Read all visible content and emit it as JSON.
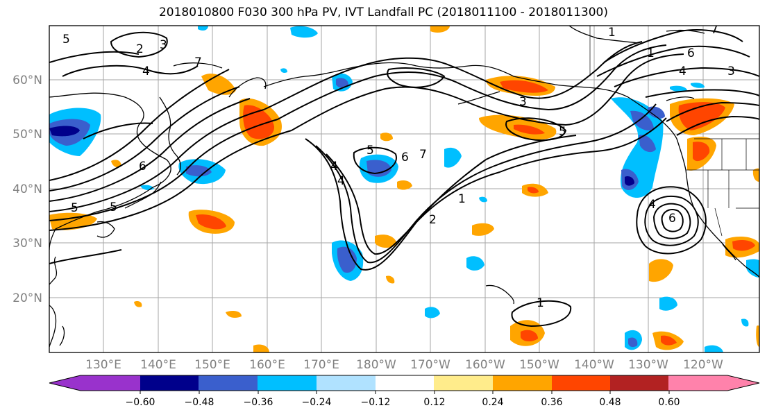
{
  "title": "2018010800 F030 300 hPa PV, IVT Landfall PC (2018011100 - 2018011300)",
  "map": {
    "lat_labels": [
      "60°N",
      "50°N",
      "40°N",
      "30°N",
      "20°N"
    ],
    "lon_labels": [
      "130°E",
      "140°E",
      "150°E",
      "160°E",
      "170°E",
      "180°W",
      "170°W",
      "160°W",
      "150°W",
      "140°W",
      "130°W",
      "120°W"
    ],
    "contour_labels": [
      "1",
      "2",
      "3",
      "4",
      "5",
      "6",
      "7"
    ]
  },
  "colorbar": {
    "ticks": [
      "−0.60",
      "−0.48",
      "−0.36",
      "−0.24",
      "−0.12",
      "0.12",
      "0.24",
      "0.36",
      "0.48",
      "0.60"
    ],
    "colors": [
      "#9932cc",
      "#00008b",
      "#3a5fcd",
      "#00bfff",
      "#b0e2ff",
      "#ffffff",
      "#ffec8b",
      "#ffa500",
      "#ff4500",
      "#b22222",
      "#ff82ab"
    ]
  }
}
